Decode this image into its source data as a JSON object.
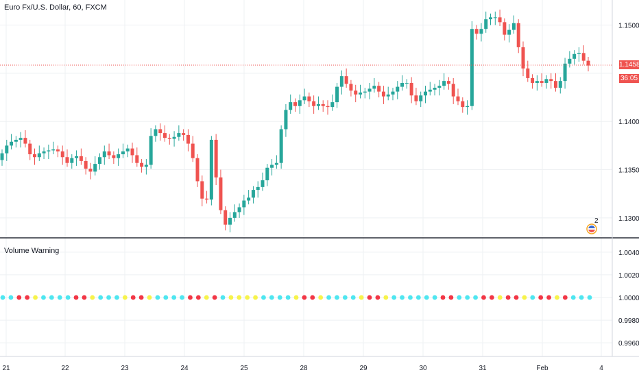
{
  "header": {
    "title": "Euro Fx/U.S. Dollar, 60, FXCM"
  },
  "indicator": {
    "title": "Volume Warning"
  },
  "price_badge": {
    "value": "1.14585",
    "countdown": "36:05"
  },
  "events_badge": {
    "count": "2"
  },
  "colors": {
    "up": "#26a69a",
    "down": "#ef5350",
    "grid": "#eef0f3",
    "axis_text": "#131722",
    "price_line": "#ef5350",
    "dot_cyan": "#4ee6f0",
    "dot_red": "#f23645",
    "dot_yellow": "#f7f34a"
  },
  "chart_data": [
    {
      "type": "candlestick",
      "title": "Euro Fx/U.S. Dollar, 60, FXCM",
      "ylim": [
        1.128,
        1.1526
      ],
      "y_ticks": [
        "1.15000",
        "1.14000",
        "1.13500",
        "1.13000"
      ],
      "x_ticks": [
        "21",
        "22",
        "23",
        "24",
        "25",
        "28",
        "29",
        "30",
        "31",
        "Feb",
        "4"
      ],
      "current_price": 1.14585,
      "series": [
        {
          "name": "",
          "close": [
            1.1367,
            1.1375,
            1.1379,
            1.1381,
            1.1383,
            1.1377,
            1.1366,
            1.1363,
            1.1367,
            1.1369,
            1.137,
            1.1371,
            1.1369,
            1.1363,
            1.1357,
            1.1362,
            1.1364,
            1.1359,
            1.1351,
            1.1348,
            1.1356,
            1.1363,
            1.1369,
            1.1365,
            1.1362,
            1.1366,
            1.1369,
            1.1372,
            1.1365,
            1.1357,
            1.1353,
            1.1355,
            1.1385,
            1.1392,
            1.1388,
            1.1383,
            1.1382,
            1.1384,
            1.1388,
            1.1386,
            1.1377,
            1.1362,
            1.1338,
            1.132,
            1.1319,
            1.1381,
            1.1342,
            1.1308,
            1.1293,
            1.13,
            1.1306,
            1.1311,
            1.1318,
            1.1321,
            1.1329,
            1.1332,
            1.1339,
            1.1352,
            1.1355,
            1.1357,
            1.1392,
            1.1412,
            1.142,
            1.1416,
            1.1422,
            1.1426,
            1.1421,
            1.1416,
            1.1418,
            1.1416,
            1.1415,
            1.142,
            1.1436,
            1.1447,
            1.1439,
            1.1432,
            1.1428,
            1.143,
            1.1431,
            1.1434,
            1.1437,
            1.1431,
            1.1426,
            1.1428,
            1.1431,
            1.1436,
            1.144,
            1.144,
            1.1427,
            1.1421,
            1.1427,
            1.1431,
            1.1433,
            1.1435,
            1.1437,
            1.1442,
            1.1439,
            1.1426,
            1.1421,
            1.1415,
            1.1416,
            1.1496,
            1.1491,
            1.1496,
            1.1506,
            1.1508,
            1.1508,
            1.1503,
            1.149,
            1.1495,
            1.1502,
            1.1477,
            1.1455,
            1.1445,
            1.144,
            1.1442,
            1.144,
            1.1444,
            1.1442,
            1.1435,
            1.1442,
            1.146,
            1.1465,
            1.147,
            1.1471,
            1.1463,
            1.1458
          ]
        }
      ]
    },
    {
      "type": "scatter",
      "title": "Volume Warning",
      "ylim": [
        0.9948,
        1.0052
      ],
      "y_ticks": [
        "1.0040",
        "1.0020",
        "1.0000",
        "0.9980",
        "0.9960"
      ],
      "value": 1.0,
      "series": [
        {
          "name": "",
          "colors": [
            "c",
            "c",
            "r",
            "r",
            "y",
            "c",
            "c",
            "c",
            "c",
            "r",
            "r",
            "y",
            "c",
            "c",
            "c",
            "y",
            "r",
            "r",
            "y",
            "c",
            "c",
            "c",
            "c",
            "r",
            "r",
            "y",
            "r",
            "c",
            "y",
            "y",
            "y",
            "y",
            "c",
            "c",
            "c",
            "c",
            "y",
            "r",
            "r",
            "y",
            "c",
            "c",
            "c",
            "c",
            "y",
            "r",
            "r",
            "y",
            "c",
            "c",
            "c",
            "c",
            "c",
            "c",
            "r",
            "r",
            "c",
            "c",
            "c",
            "r",
            "r",
            "y",
            "r",
            "r",
            "y",
            "c",
            "r",
            "r",
            "y",
            "r",
            "c",
            "c",
            "c"
          ],
          "x_pixel_hint": []
        }
      ]
    }
  ]
}
